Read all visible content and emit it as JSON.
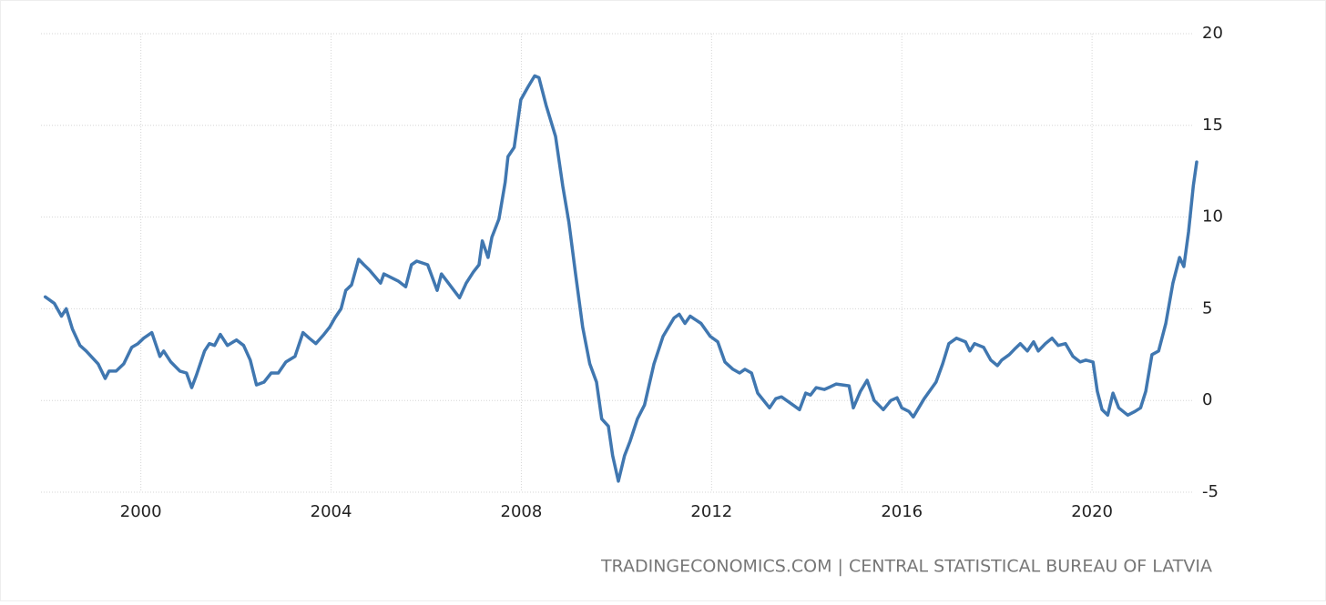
{
  "chart_data": {
    "type": "line",
    "source": "TRADINGECONOMICS.COM | CENTRAL STATISTICAL BUREAU OF LATVIA",
    "color": "#4077b0",
    "x": [
      1997.99,
      1998.18,
      1998.33,
      1998.43,
      1998.56,
      1998.72,
      1998.85,
      1999.1,
      1999.25,
      1999.33,
      1999.48,
      1999.64,
      1999.81,
      1999.94,
      2000.06,
      2000.23,
      2000.4,
      2000.48,
      2000.63,
      2000.82,
      2000.96,
      2001.07,
      2001.17,
      2001.34,
      2001.44,
      2001.55,
      2001.67,
      2001.82,
      2002.01,
      2002.16,
      2002.3,
      2002.43,
      2002.59,
      2002.74,
      2002.89,
      2003.05,
      2003.24,
      2003.41,
      2003.54,
      2003.68,
      2003.85,
      2003.97,
      2004.08,
      2004.21,
      2004.31,
      2004.43,
      2004.58,
      2004.69,
      2004.81,
      2005.04,
      2005.11,
      2005.42,
      2005.57,
      2005.69,
      2005.8,
      2006.03,
      2006.23,
      2006.32,
      2006.7,
      2006.84,
      2006.99,
      2007.11,
      2007.18,
      2007.3,
      2007.38,
      2007.53,
      2007.66,
      2007.72,
      2007.85,
      2007.99,
      2008.14,
      2008.28,
      2008.37,
      2008.52,
      2008.72,
      2008.87,
      2009.0,
      2009.14,
      2009.29,
      2009.44,
      2009.58,
      2009.69,
      2009.83,
      2009.92,
      2010.04,
      2010.17,
      2010.29,
      2010.44,
      2010.59,
      2010.79,
      2010.98,
      2011.21,
      2011.32,
      2011.44,
      2011.55,
      2011.78,
      2011.97,
      2012.13,
      2012.28,
      2012.45,
      2012.59,
      2012.7,
      2012.84,
      2012.97,
      2013.22,
      2013.35,
      2013.47,
      2013.74,
      2013.85,
      2013.98,
      2014.08,
      2014.2,
      2014.37,
      2014.5,
      2014.62,
      2014.89,
      2014.98,
      2015.13,
      2015.27,
      2015.42,
      2015.61,
      2015.77,
      2015.9,
      2016.0,
      2016.15,
      2016.24,
      2016.47,
      2016.72,
      2016.86,
      2016.99,
      2017.15,
      2017.34,
      2017.43,
      2017.53,
      2017.72,
      2017.87,
      2018.01,
      2018.1,
      2018.26,
      2018.37,
      2018.49,
      2018.64,
      2018.77,
      2018.87,
      2019.02,
      2019.16,
      2019.29,
      2019.44,
      2019.6,
      2019.75,
      2019.87,
      2020.02,
      2020.11,
      2020.21,
      2020.33,
      2020.44,
      2020.56,
      2020.75,
      2020.9,
      2021.02,
      2021.13,
      2021.26,
      2021.4,
      2021.55,
      2021.7,
      2021.84,
      2021.93,
      2022.03,
      2022.13,
      2022.2
    ],
    "values": [
      5.65,
      5.3,
      4.6,
      5.0,
      3.9,
      3.0,
      2.7,
      2.0,
      1.2,
      1.6,
      1.6,
      2.0,
      2.9,
      3.1,
      3.4,
      3.7,
      2.4,
      2.7,
      2.1,
      1.6,
      1.5,
      0.7,
      1.4,
      2.7,
      3.1,
      3.0,
      3.6,
      3.0,
      3.3,
      3.0,
      2.2,
      0.85,
      1.0,
      1.5,
      1.5,
      2.1,
      2.4,
      3.7,
      3.4,
      3.1,
      3.6,
      4.0,
      4.5,
      5.0,
      6.0,
      6.3,
      7.7,
      7.4,
      7.1,
      6.4,
      6.9,
      6.5,
      6.2,
      7.4,
      7.6,
      7.4,
      6.0,
      6.9,
      5.6,
      6.4,
      7.0,
      7.4,
      8.7,
      7.8,
      8.9,
      9.9,
      11.9,
      13.3,
      13.8,
      16.4,
      17.1,
      17.7,
      17.6,
      16.1,
      14.4,
      11.7,
      9.7,
      6.9,
      4.0,
      2.0,
      1.0,
      -1.0,
      -1.4,
      -3.0,
      -4.4,
      -3.0,
      -2.2,
      -1.0,
      -0.25,
      2.0,
      3.5,
      4.5,
      4.7,
      4.2,
      4.6,
      4.2,
      3.5,
      3.2,
      2.1,
      1.7,
      1.5,
      1.7,
      1.5,
      0.4,
      -0.4,
      0.1,
      0.2,
      -0.3,
      -0.5,
      0.4,
      0.3,
      0.7,
      0.6,
      0.75,
      0.9,
      0.8,
      -0.4,
      0.5,
      1.1,
      0.0,
      -0.5,
      0.0,
      0.15,
      -0.4,
      -0.6,
      -0.9,
      0.1,
      1.0,
      2.0,
      3.1,
      3.4,
      3.2,
      2.7,
      3.1,
      2.9,
      2.2,
      1.9,
      2.2,
      2.5,
      2.8,
      3.1,
      2.7,
      3.2,
      2.7,
      3.1,
      3.4,
      3.0,
      3.1,
      2.4,
      2.1,
      2.2,
      2.1,
      0.5,
      -0.5,
      -0.8,
      0.4,
      -0.4,
      -0.8,
      -0.6,
      -0.4,
      0.5,
      2.5,
      2.7,
      4.2,
      6.4,
      7.8,
      7.3,
      9.2,
      11.7,
      13.0
    ],
    "xlim": [
      1997.9,
      2022.2
    ],
    "xticks": [
      2000,
      2004,
      2008,
      2012,
      2016,
      2020
    ],
    "ylim": [
      -5,
      20
    ],
    "yticks": [
      -5,
      0,
      5,
      10,
      15,
      20
    ],
    "grid": true
  }
}
